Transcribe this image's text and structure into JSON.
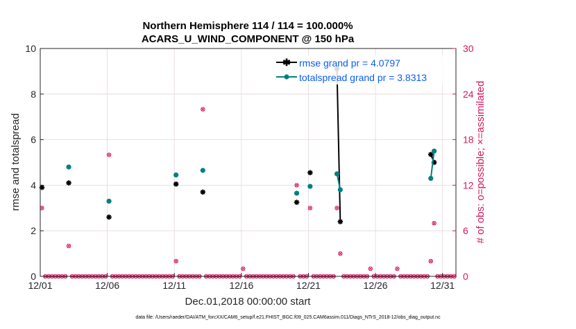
{
  "chart_data": {
    "type": "line",
    "title_line1": "Northern Hemisphere 114 / 114 = 100.000%",
    "title_line2": "ACARS_U_WIND_COMPONENT @ 150 hPa",
    "xlabel": "Dec.01,2018 00:00:00 start",
    "ylabel_left": "rmse and totalspread",
    "ylabel_right": "# of obs: o=possible; ×=assimilated",
    "xlim": [
      0,
      31
    ],
    "ylim_left": [
      0,
      10
    ],
    "ylim_right": [
      0,
      30
    ],
    "x_ticks": [
      {
        "value": 0,
        "label": "12/01"
      },
      {
        "value": 5,
        "label": "12/06"
      },
      {
        "value": 10,
        "label": "12/11"
      },
      {
        "value": 15,
        "label": "12/16"
      },
      {
        "value": 20,
        "label": "12/21"
      },
      {
        "value": 25,
        "label": "12/26"
      },
      {
        "value": 30,
        "label": "12/31"
      }
    ],
    "y_ticks_left": [
      "0",
      "2",
      "4",
      "6",
      "8",
      "10"
    ],
    "y_ticks_right": [
      "0",
      "6",
      "12",
      "18",
      "24",
      "30"
    ],
    "legend_location": "top-right",
    "colors": {
      "rmse": "#000000",
      "totalspread": "#00807f",
      "obs": "#d6185e",
      "grid": "#e3d7dc",
      "legend_text": "#0a5cf5"
    },
    "series": [
      {
        "name": "rmse",
        "legend": "rmse grand pr = 4.0797",
        "points": [
          [
            0.125,
            3.9
          ],
          [
            2.125,
            4.1
          ],
          [
            5.125,
            2.6
          ],
          [
            10.125,
            4.05
          ],
          [
            12.125,
            3.7
          ],
          [
            19.125,
            3.25
          ],
          [
            20.125,
            4.55
          ],
          [
            22.125,
            9.1
          ],
          [
            22.375,
            2.4
          ],
          [
            29.125,
            5.35
          ],
          [
            29.375,
            5.0
          ]
        ]
      },
      {
        "name": "totalspread",
        "legend": "totalspread grand pr = 3.8313",
        "points": [
          [
            2.125,
            4.8
          ],
          [
            5.125,
            3.3
          ],
          [
            10.125,
            4.45
          ],
          [
            12.125,
            4.65
          ],
          [
            19.125,
            3.65
          ],
          [
            20.125,
            3.95
          ],
          [
            22.125,
            4.5
          ],
          [
            22.375,
            3.8
          ],
          [
            29.125,
            4.3
          ],
          [
            29.375,
            5.5
          ]
        ]
      }
    ],
    "obs_possible_nonzero": [
      [
        0.125,
        9
      ],
      [
        2.125,
        4
      ],
      [
        5.125,
        16
      ],
      [
        10.125,
        2
      ],
      [
        12.125,
        22
      ],
      [
        15.125,
        1
      ],
      [
        19.125,
        12
      ],
      [
        20.125,
        9
      ],
      [
        22.125,
        9
      ],
      [
        22.375,
        3
      ],
      [
        24.625,
        1
      ],
      [
        26.625,
        1
      ],
      [
        29.125,
        2
      ],
      [
        29.375,
        7
      ]
    ],
    "obs_sample_step": 0.25,
    "footer": "data file: /Users/raeder/DAI/ATM_forcXX/CAM6_setup/f.e21.FHIST_BGC.f09_025.CAM6assim.011/Diags_NTrS_2018-12/obs_diag_output.nc"
  }
}
